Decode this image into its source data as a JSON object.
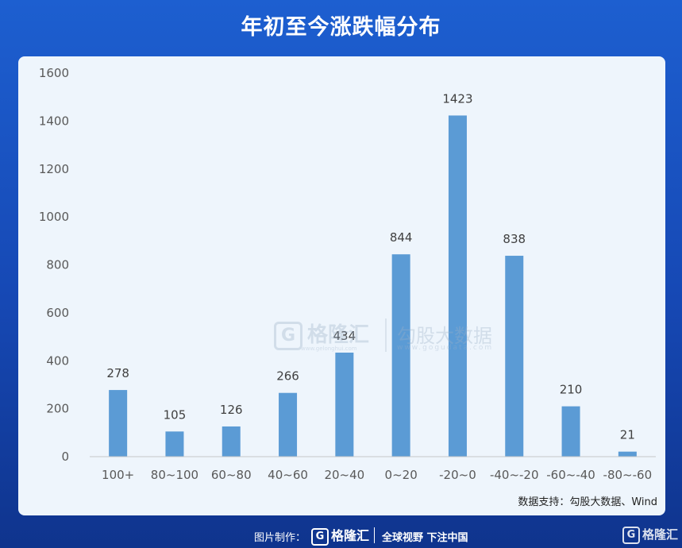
{
  "title": "年初至今涨跌幅分布",
  "source": "数据支持：勾股大数据、Wind",
  "watermark": {
    "brand": "格隆汇",
    "brand_url": "www.gelonghui.com",
    "partner": "勾股大数据",
    "partner_url": "www.gogudata.com"
  },
  "footer": {
    "made_by": "图片制作：",
    "logo_text": "格隆汇",
    "slogan": "全球视野 下注中国",
    "corner_logo": "格隆汇"
  },
  "colors": {
    "bar": "#5b9bd5",
    "background": "#1a55c4",
    "panel": "#eef5fc"
  },
  "chart_data": {
    "type": "bar",
    "categories": [
      "100+",
      "80~100",
      "60~80",
      "40~60",
      "20~40",
      "0~20",
      "-20~0",
      "-40~-20",
      "-60~-40",
      "-80~-60"
    ],
    "values": [
      278,
      105,
      126,
      266,
      434,
      844,
      1423,
      838,
      210,
      21
    ],
    "ylim": [
      0,
      1600
    ],
    "yticks": [
      0,
      200,
      400,
      600,
      800,
      1000,
      1200,
      1400,
      1600
    ],
    "grid": false,
    "data_labels": true
  }
}
